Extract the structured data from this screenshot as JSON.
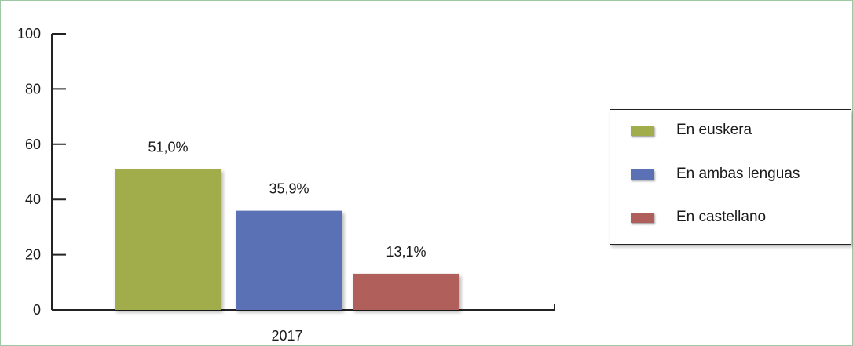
{
  "chart_data": {
    "type": "bar",
    "categories": [
      "2017"
    ],
    "series": [
      {
        "name": "En euskera",
        "values": [
          51.0
        ],
        "label": "51,0%",
        "color": "#a1ac4b"
      },
      {
        "name": "En ambas lenguas",
        "values": [
          35.9
        ],
        "label": "35,9%",
        "color": "#5a72b5"
      },
      {
        "name": "En castellano",
        "values": [
          13.1
        ],
        "label": "13,1%",
        "color": "#b05e5a"
      }
    ],
    "yticks": [
      "0",
      "20",
      "40",
      "60",
      "80",
      "100"
    ],
    "ylim": [
      0,
      100
    ],
    "legend_position": "right",
    "grid": false
  }
}
